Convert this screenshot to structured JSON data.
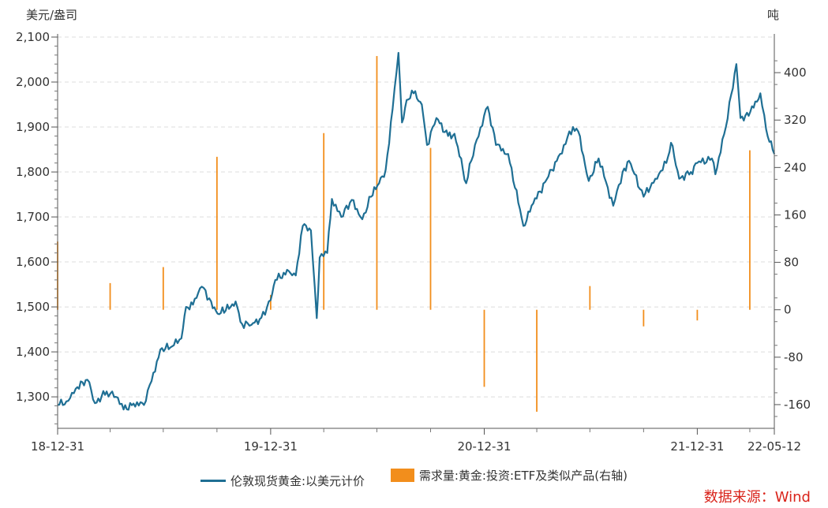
{
  "chart_data": {
    "type": "line",
    "left_axis_title": "美元/盎司",
    "right_axis_title": "吨",
    "source": "数据来源：Wind",
    "x_axis": {
      "tick_labels": [
        "18-12-31",
        "19-12-31",
        "20-12-31",
        "21-12-31",
        "22-05-12"
      ],
      "tick_dates": [
        "2018-12-31",
        "2019-12-31",
        "2020-12-31",
        "2021-12-31",
        "2022-05-12"
      ],
      "range": [
        "2018-12-31",
        "2022-05-12"
      ]
    },
    "y_left": {
      "range": [
        1230,
        2100
      ],
      "ticks": [
        1300,
        1400,
        1500,
        1600,
        1700,
        1800,
        1900,
        2000,
        2100
      ],
      "tick_labels": [
        "1,300",
        "1,400",
        "1,500",
        "1,600",
        "1,700",
        "1,800",
        "1,900",
        "2,000",
        "2,100"
      ]
    },
    "y_right": {
      "range": [
        -200,
        460
      ],
      "ticks": [
        -160,
        -80,
        0,
        80,
        160,
        240,
        320,
        400
      ],
      "tick_labels": [
        "-160",
        "-80",
        "0",
        "80",
        "160",
        "240",
        "320",
        "400"
      ]
    },
    "series": [
      {
        "name": "伦敦现货黄金:以美元计价",
        "type": "line",
        "axis": "left",
        "color": "#1f6f94",
        "points": [
          [
            "2018-12-31",
            1282
          ],
          [
            "2019-01-15",
            1290
          ],
          [
            "2019-01-31",
            1318
          ],
          [
            "2019-02-20",
            1338
          ],
          [
            "2019-03-05",
            1286
          ],
          [
            "2019-03-25",
            1312
          ],
          [
            "2019-04-10",
            1300
          ],
          [
            "2019-04-23",
            1272
          ],
          [
            "2019-05-10",
            1285
          ],
          [
            "2019-05-28",
            1282
          ],
          [
            "2019-06-10",
            1335
          ],
          [
            "2019-06-25",
            1405
          ],
          [
            "2019-07-15",
            1412
          ],
          [
            "2019-07-31",
            1430
          ],
          [
            "2019-08-08",
            1500
          ],
          [
            "2019-08-20",
            1505
          ],
          [
            "2019-09-04",
            1545
          ],
          [
            "2019-09-20",
            1512
          ],
          [
            "2019-10-01",
            1485
          ],
          [
            "2019-10-15",
            1492
          ],
          [
            "2019-11-01",
            1512
          ],
          [
            "2019-11-12",
            1462
          ],
          [
            "2019-11-28",
            1460
          ],
          [
            "2019-12-15",
            1476
          ],
          [
            "2019-12-31",
            1515
          ],
          [
            "2020-01-08",
            1560
          ],
          [
            "2020-01-31",
            1580
          ],
          [
            "2020-02-12",
            1570
          ],
          [
            "2020-02-24",
            1680
          ],
          [
            "2020-03-09",
            1670
          ],
          [
            "2020-03-19",
            1475
          ],
          [
            "2020-03-24",
            1610
          ],
          [
            "2020-04-06",
            1620
          ],
          [
            "2020-04-14",
            1740
          ],
          [
            "2020-04-30",
            1700
          ],
          [
            "2020-05-18",
            1738
          ],
          [
            "2020-06-05",
            1695
          ],
          [
            "2020-06-20",
            1745
          ],
          [
            "2020-07-01",
            1770
          ],
          [
            "2020-07-15",
            1805
          ],
          [
            "2020-07-27",
            1940
          ],
          [
            "2020-08-06",
            2065
          ],
          [
            "2020-08-12",
            1910
          ],
          [
            "2020-08-20",
            1960
          ],
          [
            "2020-09-01",
            1975
          ],
          [
            "2020-09-15",
            1950
          ],
          [
            "2020-09-24",
            1860
          ],
          [
            "2020-10-10",
            1920
          ],
          [
            "2020-10-30",
            1880
          ],
          [
            "2020-11-10",
            1885
          ],
          [
            "2020-11-30",
            1775
          ],
          [
            "2020-12-15",
            1860
          ],
          [
            "2021-01-06",
            1945
          ],
          [
            "2021-01-20",
            1860
          ],
          [
            "2021-02-10",
            1840
          ],
          [
            "2021-03-08",
            1680
          ],
          [
            "2021-03-25",
            1730
          ],
          [
            "2021-04-20",
            1790
          ],
          [
            "2021-05-10",
            1840
          ],
          [
            "2021-06-01",
            1900
          ],
          [
            "2021-06-10",
            1890
          ],
          [
            "2021-06-28",
            1780
          ],
          [
            "2021-07-15",
            1830
          ],
          [
            "2021-08-09",
            1725
          ],
          [
            "2021-08-25",
            1800
          ],
          [
            "2021-09-05",
            1825
          ],
          [
            "2021-09-30",
            1745
          ],
          [
            "2021-10-20",
            1785
          ],
          [
            "2021-11-08",
            1820
          ],
          [
            "2021-11-16",
            1865
          ],
          [
            "2021-11-30",
            1785
          ],
          [
            "2021-12-20",
            1800
          ],
          [
            "2021-12-31",
            1820
          ],
          [
            "2022-01-25",
            1830
          ],
          [
            "2022-01-31",
            1795
          ],
          [
            "2022-02-18",
            1900
          ],
          [
            "2022-03-08",
            2040
          ],
          [
            "2022-03-15",
            1920
          ],
          [
            "2022-03-29",
            1925
          ],
          [
            "2022-04-18",
            1975
          ],
          [
            "2022-04-28",
            1895
          ],
          [
            "2022-05-12",
            1840
          ]
        ]
      },
      {
        "name": "需求量:黄金:投资:ETF及类似产品(右轴)",
        "type": "bar",
        "axis": "right",
        "color": "#f28e1c",
        "points": [
          [
            "2018-12-31",
            115
          ],
          [
            "2019-03-31",
            45
          ],
          [
            "2019-06-30",
            72
          ],
          [
            "2019-09-30",
            258
          ],
          [
            "2019-12-31",
            25
          ],
          [
            "2020-03-31",
            298
          ],
          [
            "2020-06-30",
            428
          ],
          [
            "2020-09-30",
            273
          ],
          [
            "2020-12-31",
            -130
          ],
          [
            "2021-03-31",
            -172
          ],
          [
            "2021-06-30",
            40
          ],
          [
            "2021-09-30",
            -28
          ],
          [
            "2021-12-31",
            -18
          ],
          [
            "2022-03-31",
            269
          ]
        ]
      }
    ],
    "grid": "horizontal dashed"
  }
}
